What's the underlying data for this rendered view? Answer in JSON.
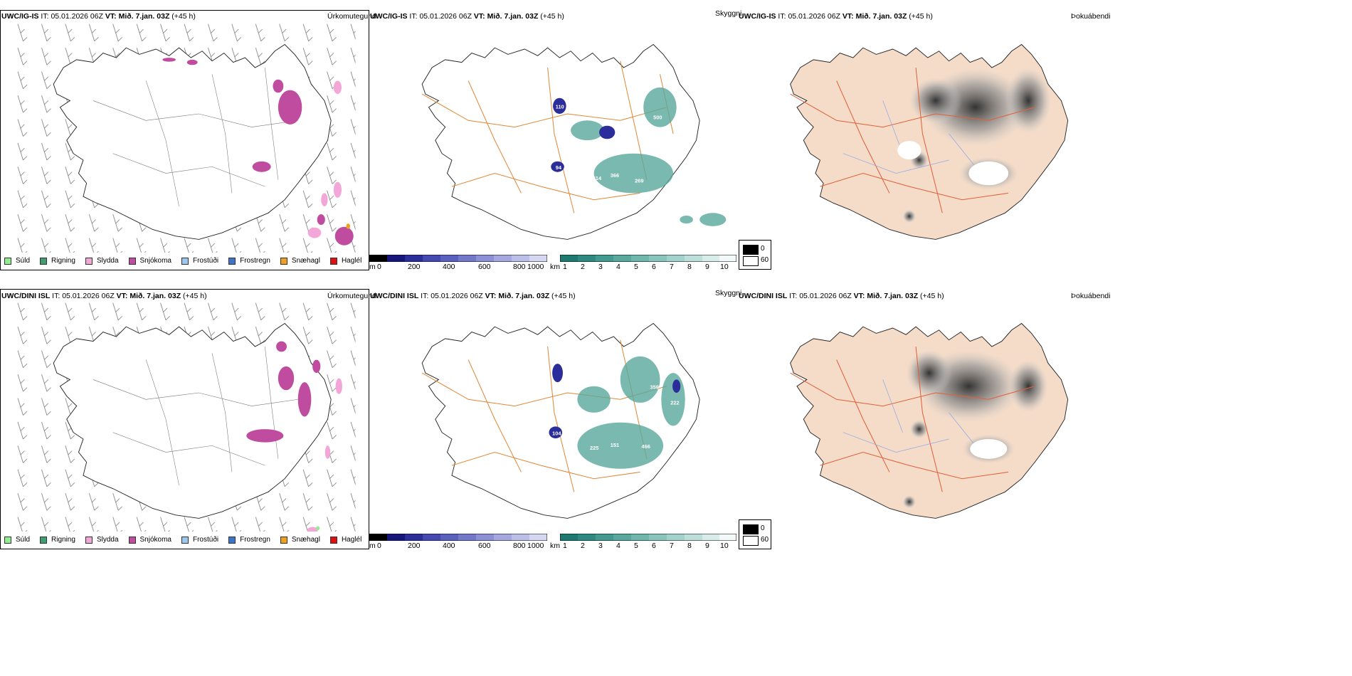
{
  "rows": [
    {
      "model": "UWC/IG-IS",
      "it_label": "IT:",
      "it_value": "05.01.2026 06Z",
      "vt_label": "VT:",
      "vt_value": "Mið. 7.jan. 03Z",
      "lead": "(+45 h)"
    },
    {
      "model": "UWC/DINI ISL",
      "it_label": "IT:",
      "it_value": "05.01.2026 06Z",
      "vt_label": "VT:",
      "vt_value": "Mið. 7.jan. 03Z",
      "lead": "(+45 h)"
    }
  ],
  "panels": {
    "precip_type": {
      "name": "Úrkomutegund"
    },
    "visibility": {
      "name": "Skyggni"
    },
    "cloud_cover": {
      "name": "Þokuábendi"
    }
  },
  "precip_legend": [
    {
      "label": "Súld",
      "color": "#90ee90"
    },
    {
      "label": "Rigning",
      "color": "#3e9e6e"
    },
    {
      "label": "Slydda",
      "color": "#f3a6d8"
    },
    {
      "label": "Snjókoma",
      "color": "#c04ca0"
    },
    {
      "label": "Frostúði",
      "color": "#9cc8f0"
    },
    {
      "label": "Frostregn",
      "color": "#3d74c8"
    },
    {
      "label": "Snæhagl",
      "color": "#f0a020"
    },
    {
      "label": "Haglél",
      "color": "#e01010"
    }
  ],
  "cloudbase_scale": {
    "unit": "m",
    "ticks": [
      "0",
      "200",
      "400",
      "600",
      "800",
      "1000"
    ]
  },
  "visibility_scale": {
    "unit": "km",
    "ticks": [
      "1",
      "2",
      "3",
      "4",
      "5",
      "6",
      "7",
      "8",
      "9",
      "10"
    ]
  },
  "fog_legend": {
    "items": [
      {
        "label": "0",
        "color": "#000000"
      },
      {
        "label": "60",
        "color": "#ffffff"
      }
    ]
  },
  "cloud_labels": {
    "row0": [
      "110",
      "94",
      "500",
      "426",
      "366",
      "414",
      "269"
    ],
    "row1": [
      "104",
      "359",
      "225",
      "151",
      "466",
      "222"
    ]
  }
}
